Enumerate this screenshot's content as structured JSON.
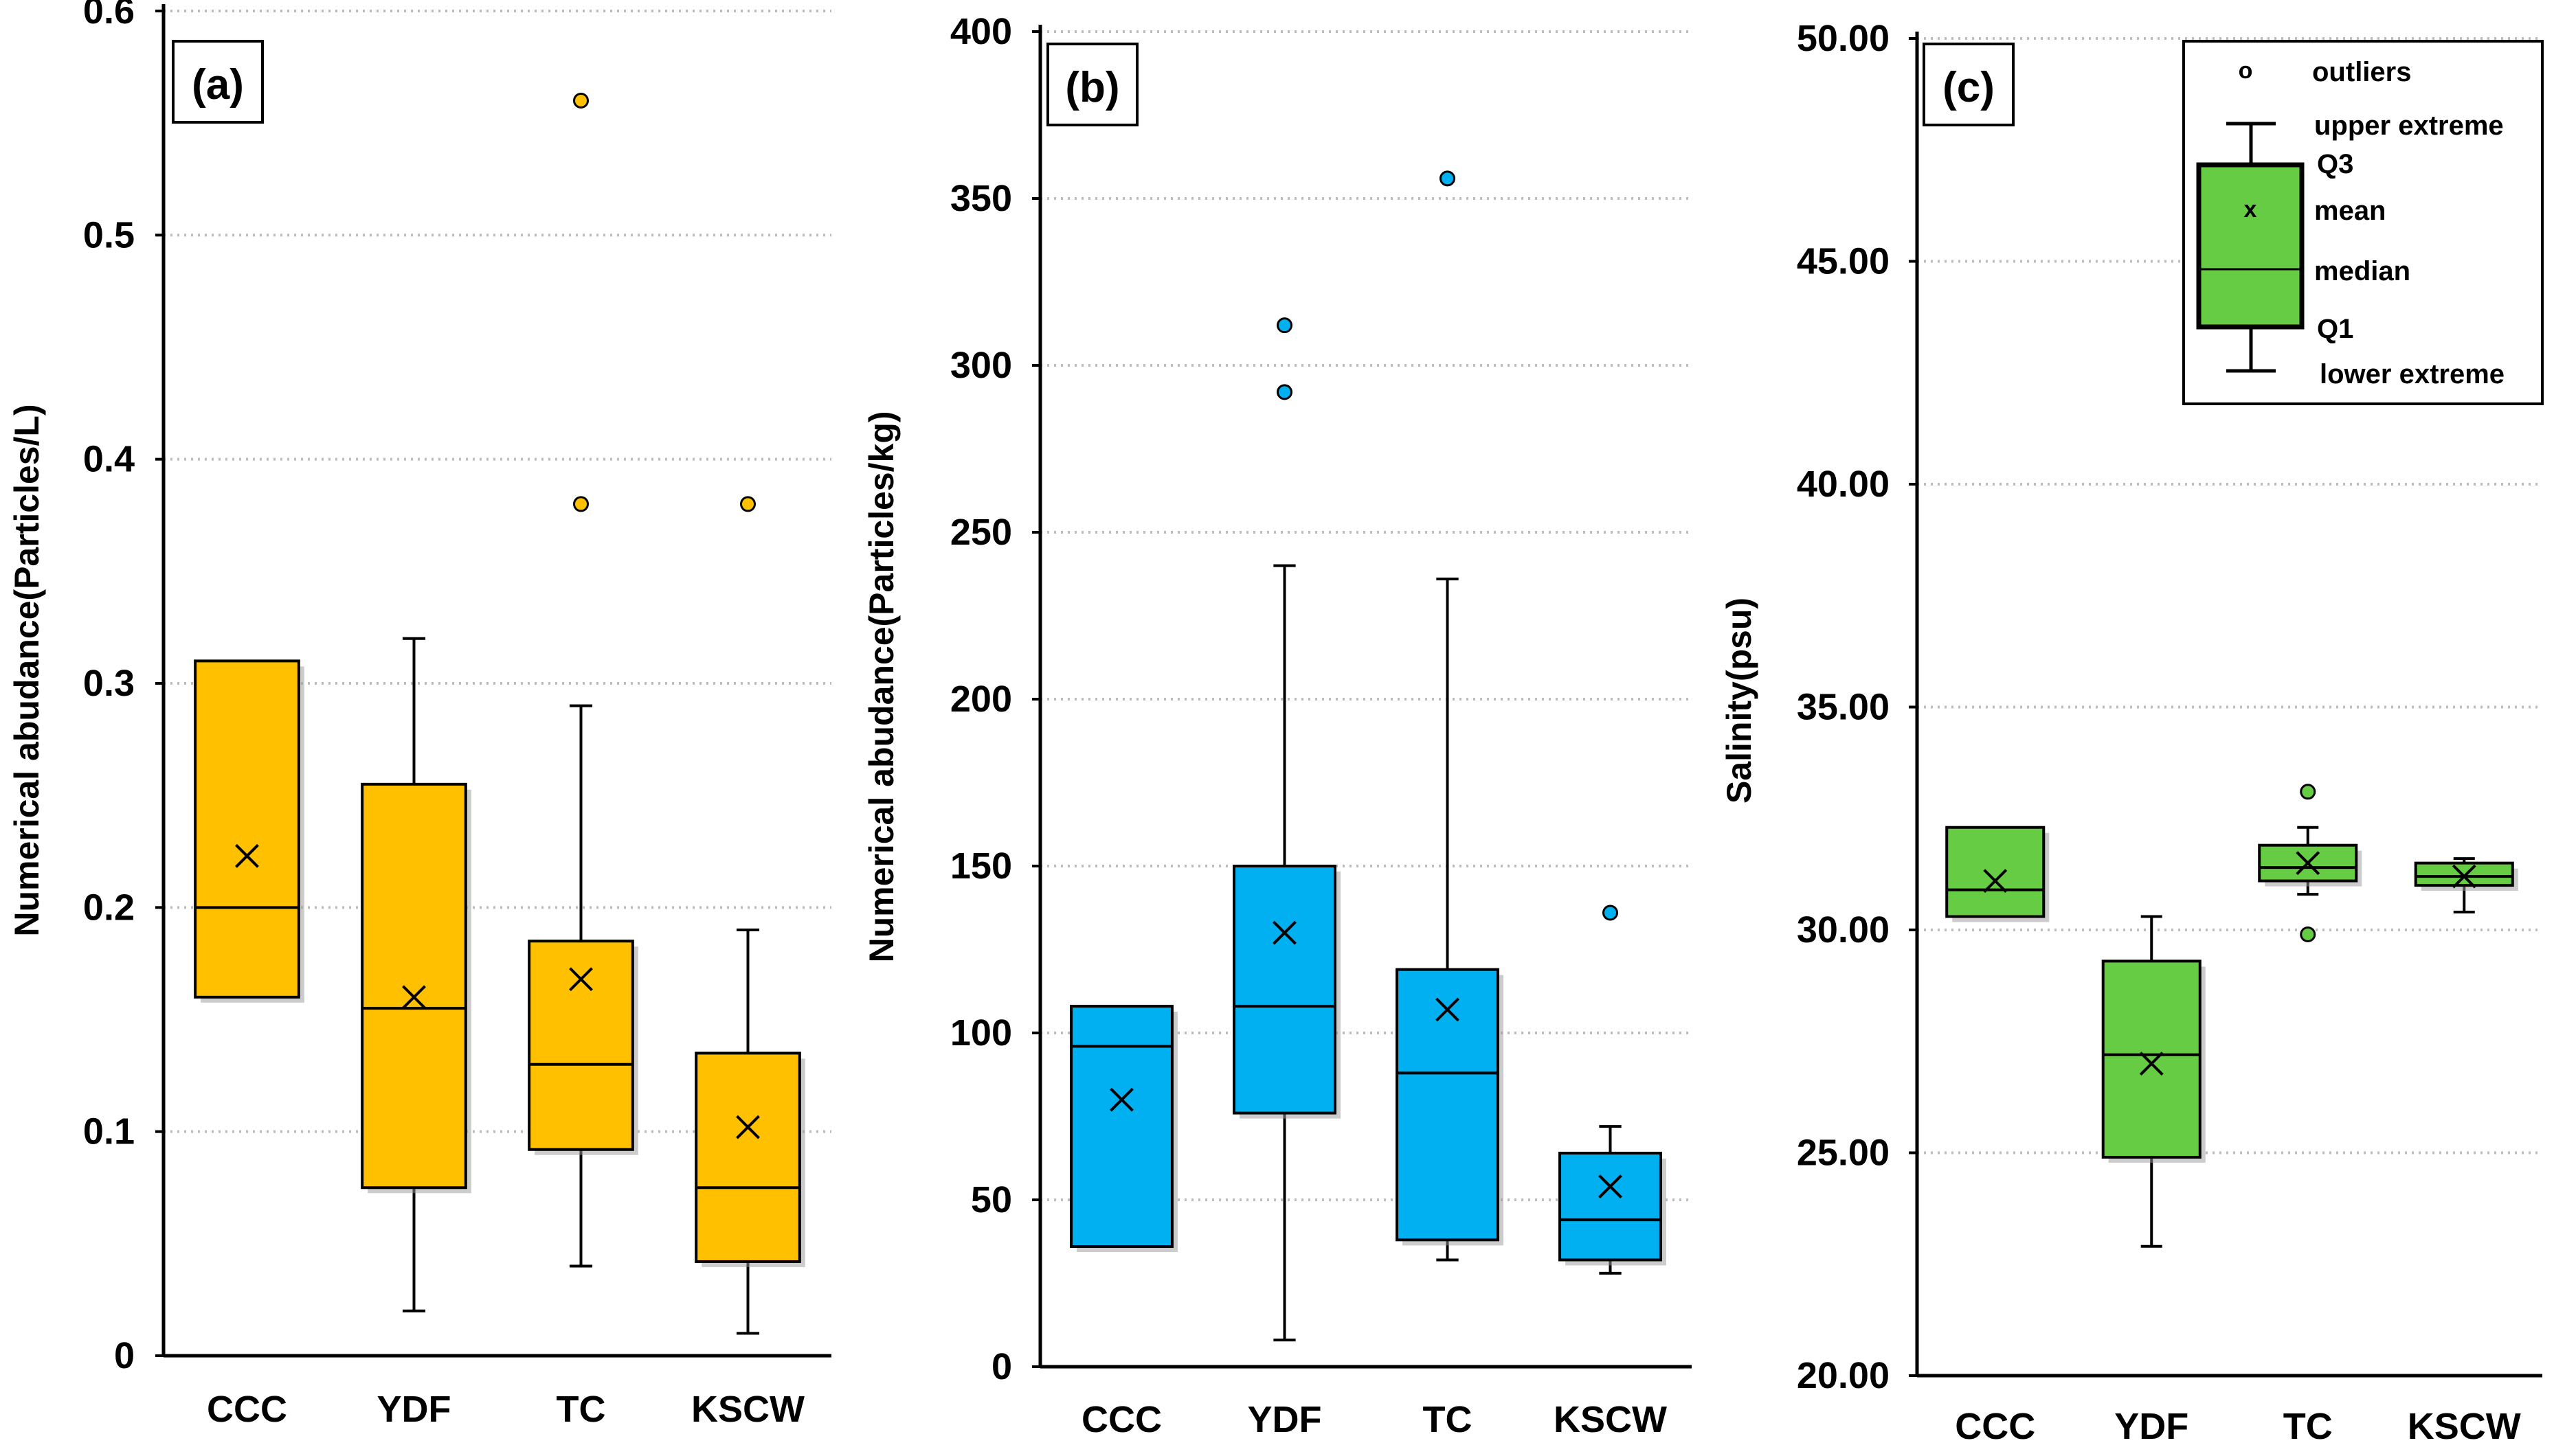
{
  "chart_data": [
    {
      "type": "box",
      "panel_label": "(a)",
      "ylabel": "Numerical abudance(Particles/L)",
      "xlabel": "",
      "categories": [
        "CCC",
        "YDF",
        "TC",
        "KSCW"
      ],
      "ylim": [
        0,
        0.6
      ],
      "yticks": [
        0,
        0.1,
        0.2,
        0.3,
        0.4,
        0.5,
        0.6
      ],
      "ytick_labels": [
        "0",
        "0.1",
        "0.2",
        "0.3",
        "0.4",
        "0.5",
        "0.6"
      ],
      "grid": true,
      "color": "#FFC000",
      "boxes": [
        {
          "category": "CCC",
          "min": 0.16,
          "q1": 0.16,
          "median": 0.2,
          "q3": 0.31,
          "max": 0.31,
          "mean": 0.223,
          "outliers": []
        },
        {
          "category": "YDF",
          "min": 0.02,
          "q1": 0.075,
          "median": 0.155,
          "q3": 0.255,
          "max": 0.32,
          "mean": 0.16,
          "outliers": []
        },
        {
          "category": "TC",
          "min": 0.04,
          "q1": 0.092,
          "median": 0.13,
          "q3": 0.185,
          "max": 0.29,
          "mean": 0.168,
          "outliers": [
            0.56,
            0.38
          ]
        },
        {
          "category": "KSCW",
          "min": 0.01,
          "q1": 0.042,
          "median": 0.075,
          "q3": 0.135,
          "max": 0.19,
          "mean": 0.102,
          "outliers": [
            0.38
          ]
        }
      ]
    },
    {
      "type": "box",
      "panel_label": "(b)",
      "ylabel": "Numerical abudance(Particles/kg)",
      "xlabel": "",
      "categories": [
        "CCC",
        "YDF",
        "TC",
        "KSCW"
      ],
      "ylim": [
        0,
        400
      ],
      "yticks": [
        0,
        50,
        100,
        150,
        200,
        250,
        300,
        350,
        400
      ],
      "ytick_labels": [
        "0",
        "50",
        "100",
        "150",
        "200",
        "250",
        "300",
        "350",
        "400"
      ],
      "grid": true,
      "color": "#00B0F0",
      "boxes": [
        {
          "category": "CCC",
          "min": 36,
          "q1": 36,
          "median": 96,
          "q3": 108,
          "max": 108,
          "mean": 80,
          "outliers": []
        },
        {
          "category": "YDF",
          "min": 8,
          "q1": 76,
          "median": 108,
          "q3": 150,
          "max": 240,
          "mean": 130,
          "outliers": [
            312,
            292
          ]
        },
        {
          "category": "TC",
          "min": 32,
          "q1": 38,
          "median": 88,
          "q3": 119,
          "max": 236,
          "mean": 107,
          "outliers": [
            356
          ]
        },
        {
          "category": "KSCW",
          "min": 28,
          "q1": 32,
          "median": 44,
          "q3": 64,
          "max": 72,
          "mean": 54,
          "outliers": [
            136
          ]
        }
      ]
    },
    {
      "type": "box",
      "panel_label": "(c)",
      "ylabel": "Salinity(psu)",
      "xlabel": "",
      "categories": [
        "CCC",
        "YDF",
        "TC",
        "KSCW"
      ],
      "ylim": [
        20,
        50
      ],
      "yticks": [
        20,
        25,
        30,
        35,
        40,
        45,
        50
      ],
      "ytick_labels": [
        "20.00",
        "25.00",
        "30.00",
        "35.00",
        "40.00",
        "45.00",
        "50.00"
      ],
      "grid": true,
      "color": "#66CC44",
      "boxes": [
        {
          "category": "CCC",
          "min": 30.3,
          "q1": 30.3,
          "median": 30.9,
          "q3": 32.3,
          "max": 32.3,
          "mean": 31.1,
          "outliers": []
        },
        {
          "category": "YDF",
          "min": 22.9,
          "q1": 24.9,
          "median": 27.2,
          "q3": 29.3,
          "max": 30.3,
          "mean": 27.0,
          "outliers": []
        },
        {
          "category": "TC",
          "min": 30.8,
          "q1": 31.1,
          "median": 31.4,
          "q3": 31.9,
          "max": 32.3,
          "mean": 31.5,
          "outliers": [
            33.1,
            29.9
          ]
        },
        {
          "category": "KSCW",
          "min": 30.4,
          "q1": 31.0,
          "median": 31.2,
          "q3": 31.5,
          "max": 31.6,
          "mean": 31.2,
          "outliers": []
        }
      ],
      "legend": {
        "position": "top-right",
        "items": {
          "outliers": "outliers",
          "upper_extreme": "upper extreme",
          "q3": "Q3",
          "mean": "mean",
          "median": "median",
          "q1": "Q1",
          "lower_extreme": "lower extreme"
        },
        "outlier_marker": "o",
        "mean_marker": "x"
      }
    }
  ]
}
